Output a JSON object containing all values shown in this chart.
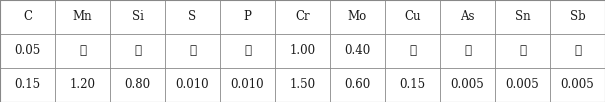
{
  "headers": [
    "C",
    "Mn",
    "Si",
    "S",
    "P",
    "Cr",
    "Mo",
    "Cu",
    "As",
    "Sn",
    "Sb"
  ],
  "row1": [
    "0.05",
    "≦",
    "≦",
    "≦",
    "≦",
    "1.00",
    "0.40",
    "≦",
    "≦",
    "≦",
    "≦"
  ],
  "row2": [
    "0.15",
    "1.20",
    "0.80",
    "0.010",
    "0.010",
    "1.50",
    "0.60",
    "0.15",
    "0.005",
    "0.005",
    "0.005"
  ],
  "background": "#ffffff",
  "text_color": "#1a1a1a",
  "border_color": "#888888",
  "font_size": 8.5,
  "fig_width": 6.05,
  "fig_height": 1.02,
  "dpi": 100
}
